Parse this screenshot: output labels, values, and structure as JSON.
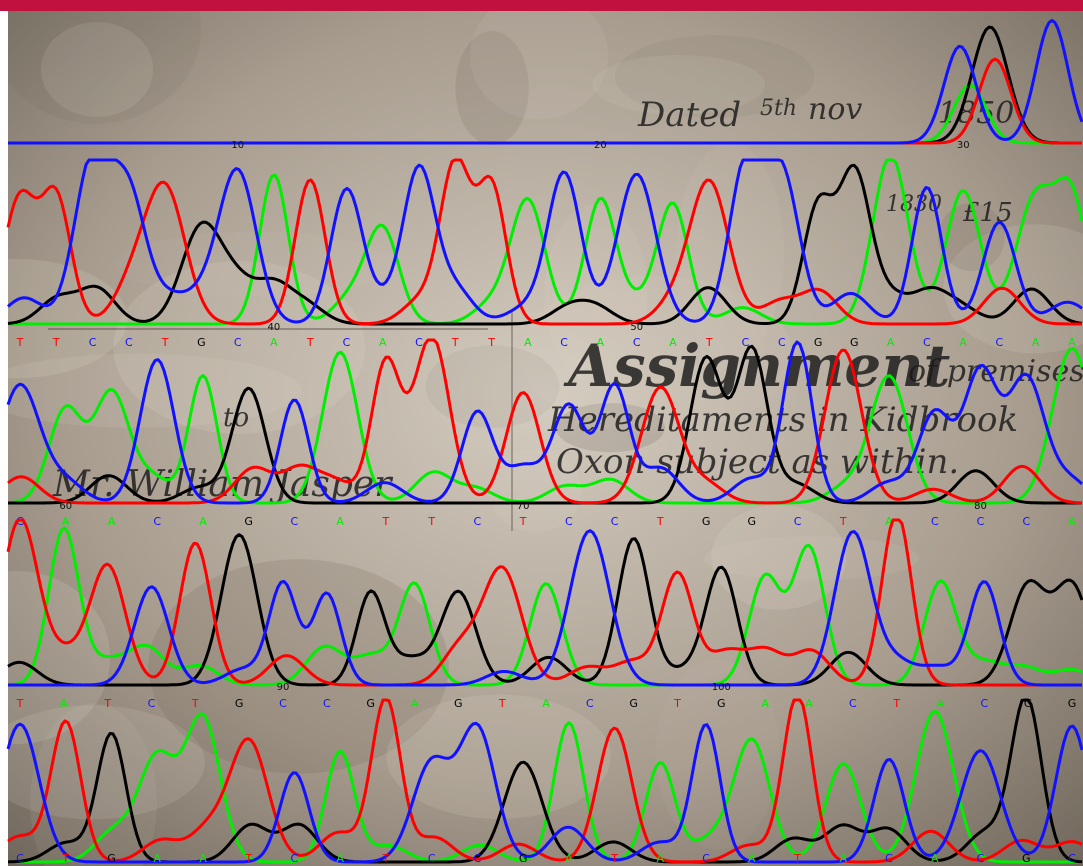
{
  "colors": {
    "frame": "#c0113f",
    "paper_light": "#d4ccc0",
    "paper_mid": "#a79c8e",
    "paper_dark": "#6f665b",
    "ink": "#1a1a1a",
    "A": "#00ee00",
    "C": "#1111ff",
    "G": "#000000",
    "T": "#ff0000"
  },
  "manuscript": {
    "dated": "Dated",
    "day": "5th",
    "month": "nov",
    "year": "1850",
    "note": "1830",
    "folio": "£15",
    "title": "Assignment",
    "line1": "of premises in",
    "line2": "Hereditaments in Kidbrook",
    "line3": "Oxon subject as within.",
    "to": "to",
    "addressee": "Mr. William Jasper"
  },
  "traces": {
    "rows": [
      {
        "bases": [],
        "positions": [
          {
            "label": "10",
            "index": 6
          },
          {
            "label": "20",
            "index": 16
          },
          {
            "label": "30",
            "index": 26
          }
        ]
      },
      {
        "bases": [
          "T",
          "T",
          "C",
          "C",
          "T",
          "G",
          "C",
          "A",
          "T",
          "C",
          "A",
          "C",
          "T",
          "T",
          "A",
          "C",
          "A",
          "C",
          "A",
          "T",
          "C",
          "C",
          "G",
          "G",
          "A",
          "C",
          "A",
          "C",
          "A",
          "A"
        ],
        "positions": [
          {
            "label": "40",
            "index": 7
          },
          {
            "label": "50",
            "index": 17
          }
        ]
      },
      {
        "bases": [
          "C",
          "A",
          "A",
          "C",
          "A",
          "G",
          "C",
          "A",
          "T",
          "T",
          "C",
          "T",
          "C",
          "C",
          "T",
          "G",
          "G",
          "C",
          "T",
          "A",
          "C",
          "C",
          "C",
          "A"
        ],
        "positions": [
          {
            "label": "60",
            "index": 1
          },
          {
            "label": "70",
            "index": 11
          },
          {
            "label": "80",
            "index": 21
          }
        ]
      },
      {
        "bases": [
          "T",
          "A",
          "T",
          "C",
          "T",
          "G",
          "C",
          "C",
          "G",
          "A",
          "G",
          "T",
          "A",
          "C",
          "G",
          "T",
          "G",
          "A",
          "A",
          "C",
          "T",
          "A",
          "C",
          "G",
          "G"
        ],
        "positions": [
          {
            "label": "90",
            "index": 6
          },
          {
            "label": "100",
            "index": 16
          }
        ]
      },
      {
        "bases": [
          "C",
          "T",
          "G",
          "A",
          "A",
          "T",
          "C",
          "A",
          "T",
          "C",
          "C",
          "G",
          "A",
          "T",
          "A",
          "C",
          "A",
          "T",
          "A",
          "C",
          "A",
          "C",
          "G",
          "C"
        ],
        "positions": []
      }
    ]
  }
}
